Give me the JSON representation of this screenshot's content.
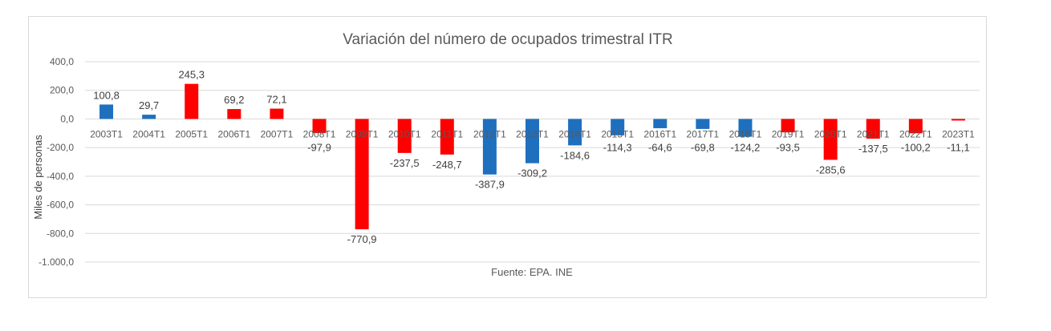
{
  "chart_data": {
    "type": "bar",
    "title": "Variación del número de ocupados trimestral ITR",
    "ylabel": "Miles de personas",
    "xlabel": "",
    "source_note": "Fuente: EPA. INE",
    "ylim": [
      -1000,
      400
    ],
    "yticks": [
      400,
      200,
      0,
      -200,
      -400,
      -600,
      -800,
      -1000
    ],
    "ytick_labels": [
      "400,0",
      "200,0",
      "0,0",
      "-200,0",
      "-400,0",
      "-600,0",
      "-800,0",
      "-1.000,0"
    ],
    "grid": true,
    "legend": "none",
    "categories": [
      "2003T1",
      "2004T1",
      "2005T1",
      "2006T1",
      "2007T1",
      "2008T1",
      "2009T1",
      "2010T1",
      "2011T1",
      "2012T1",
      "2013T1",
      "2014T1",
      "2015T1",
      "2016T1",
      "2017T1",
      "2018T1",
      "2019T1",
      "2020T1",
      "2021T1",
      "2022T1",
      "2023T1"
    ],
    "values": [
      100.8,
      29.7,
      245.3,
      69.2,
      72.1,
      -97.9,
      -770.9,
      -237.5,
      -248.7,
      -387.9,
      -309.2,
      -184.6,
      -114.3,
      -64.6,
      -69.8,
      -124.2,
      -93.5,
      -285.6,
      -137.5,
      -100.2,
      -11.1
    ],
    "value_labels": [
      "100,8",
      "29,7",
      "245,3",
      "69,2",
      "72,1",
      "-97,9",
      "-770,9",
      "-237,5",
      "-248,7",
      "-387,9",
      "-309,2",
      "-184,6",
      "-114,3",
      "-64,6",
      "-69,8",
      "-124,2",
      "-93,5",
      "-285,6",
      "-137,5",
      "-100,2",
      "-11,1"
    ],
    "bar_colors": [
      "#1f6fbf",
      "#1f6fbf",
      "#ff0000",
      "#ff0000",
      "#ff0000",
      "#ff0000",
      "#ff0000",
      "#ff0000",
      "#ff0000",
      "#1f6fbf",
      "#1f6fbf",
      "#1f6fbf",
      "#1f6fbf",
      "#1f6fbf",
      "#1f6fbf",
      "#1f6fbf",
      "#ff0000",
      "#ff0000",
      "#ff0000",
      "#ff0000",
      "#ff0000"
    ],
    "colors": {
      "blue": "#1f6fbf",
      "red": "#ff0000",
      "grid": "#d9d9d9"
    }
  }
}
